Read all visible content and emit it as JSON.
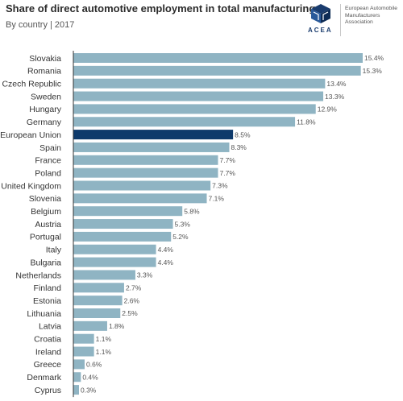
{
  "header": {
    "title": "Share of direct automotive employment in total manufacturing",
    "subtitle": "By country | 2017"
  },
  "logo": {
    "wordmark": "ACEA",
    "text": "European Automobile Manufacturers Association"
  },
  "colors": {
    "bar": "#8fb4c3",
    "highlight_bar": "#0e3a6b",
    "axis": "#333333"
  },
  "chart_data": {
    "type": "bar",
    "orientation": "horizontal",
    "title": "Share of direct automotive employment in total manufacturing",
    "subtitle": "By country | 2017",
    "value_suffix": "%",
    "categories": [
      "Slovakia",
      "Romania",
      "Czech Republic",
      "Sweden",
      "Hungary",
      "Germany",
      "European Union",
      "Spain",
      "France",
      "Poland",
      "United Kingdom",
      "Slovenia",
      "Belgium",
      "Austria",
      "Portugal",
      "Italy",
      "Bulgaria",
      "Netherlands",
      "Finland",
      "Estonia",
      "Lithuania",
      "Latvia",
      "Croatia",
      "Ireland",
      "Greece",
      "Denmark",
      "Cyprus"
    ],
    "values": [
      15.4,
      15.3,
      13.4,
      13.3,
      12.9,
      11.8,
      8.5,
      8.3,
      7.7,
      7.7,
      7.3,
      7.1,
      5.8,
      5.3,
      5.2,
      4.4,
      4.4,
      3.3,
      2.7,
      2.6,
      2.5,
      1.8,
      1.1,
      1.1,
      0.6,
      0.4,
      0.3
    ],
    "highlight": "European Union",
    "xlim": [
      0,
      15.4
    ],
    "grid": false,
    "legend": "none"
  }
}
